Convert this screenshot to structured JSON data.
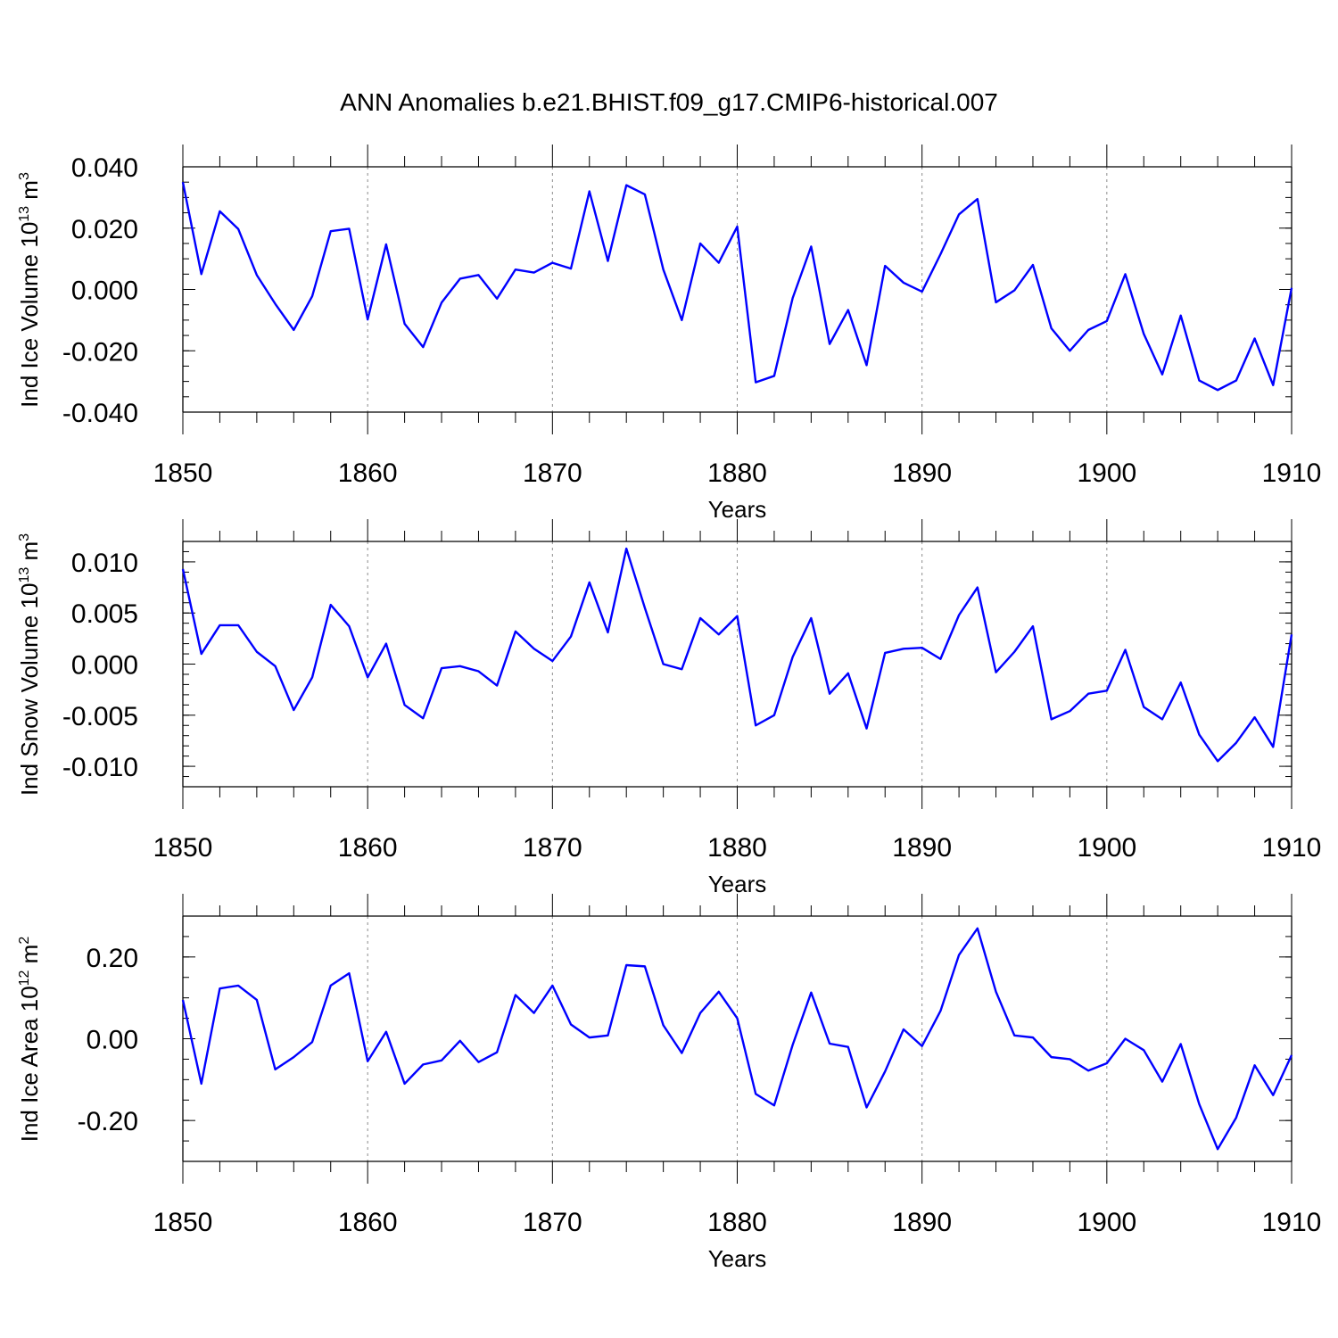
{
  "title": "ANN Anomalies b.e21.BHIST.f09_g17.CMIP6-historical.007",
  "line_color": "#0000ff",
  "chart_data": [
    {
      "type": "line",
      "ylabel": {
        "pre": "Ind Ice Volume 10",
        "exp": "13",
        "unit": " m",
        "unit_exp": "3"
      },
      "xlabel": "Years",
      "xlim": [
        1850,
        1910
      ],
      "ylim": [
        -0.04,
        0.04
      ],
      "x_ticks": [
        1850,
        1860,
        1870,
        1880,
        1890,
        1900,
        1910
      ],
      "x_tick_labels": [
        "1850",
        "1860",
        "1870",
        "1880",
        "1890",
        "1900",
        "1910"
      ],
      "y_ticks": [
        0.04,
        0.02,
        0.0,
        -0.02,
        -0.04
      ],
      "y_tick_labels": [
        "0.040",
        "0.020",
        "0.000",
        "-0.020",
        "-0.040"
      ],
      "y_minor_step": 0.005,
      "grid": "vertical dashed at x-ticks",
      "series": [
        {
          "name": "Ind Ice Volume",
          "x_start": 1850,
          "x_step": 1,
          "values": [
            0.035,
            0.005,
            0.0255,
            0.0197,
            0.0047,
            -0.0047,
            -0.0132,
            -0.0022,
            0.019,
            0.0198,
            -0.0098,
            0.0147,
            -0.0112,
            -0.0188,
            -0.0043,
            0.0035,
            0.0047,
            -0.003,
            0.0065,
            0.0055,
            0.0087,
            0.0068,
            0.032,
            0.0093,
            0.034,
            0.031,
            0.0065,
            -0.01,
            0.015,
            0.0087,
            0.0205,
            -0.0303,
            -0.0282,
            -0.0028,
            0.014,
            -0.0178,
            -0.0067,
            -0.0247,
            0.0077,
            0.0022,
            -0.0007,
            0.0115,
            0.0245,
            0.0295,
            -0.0042,
            -0.0003,
            0.008,
            -0.0127,
            -0.02,
            -0.0132,
            -0.0103,
            0.005,
            -0.0145,
            -0.0277,
            -0.0085,
            -0.0297,
            -0.0328,
            -0.0297,
            -0.016,
            -0.0312,
            0.0005
          ]
        }
      ]
    },
    {
      "type": "line",
      "ylabel": {
        "pre": "Ind Snow Volume 10",
        "exp": "13",
        "unit": " m",
        "unit_exp": "3"
      },
      "xlabel": "Years",
      "xlim": [
        1850,
        1910
      ],
      "ylim": [
        -0.012,
        0.012
      ],
      "x_ticks": [
        1850,
        1860,
        1870,
        1880,
        1890,
        1900,
        1910
      ],
      "x_tick_labels": [
        "1850",
        "1860",
        "1870",
        "1880",
        "1890",
        "1900",
        "1910"
      ],
      "y_ticks": [
        0.01,
        0.005,
        0.0,
        -0.005,
        -0.01
      ],
      "y_tick_labels": [
        "0.010",
        "0.005",
        "0.000",
        "-0.005",
        "-0.010"
      ],
      "y_minor_step": 0.001,
      "grid": "vertical dashed at x-ticks",
      "series": [
        {
          "name": "Ind Snow Volume",
          "x_start": 1850,
          "x_step": 1,
          "values": [
            0.0093,
            0.001,
            0.0038,
            0.0038,
            0.0012,
            -0.0002,
            -0.0045,
            -0.0013,
            0.0058,
            0.0037,
            -0.0013,
            0.002,
            -0.004,
            -0.0053,
            -0.0004,
            -0.0002,
            -0.0007,
            -0.0021,
            0.0032,
            0.0015,
            0.0003,
            0.0027,
            0.008,
            0.0031,
            0.0113,
            0.0055,
            0.0,
            -0.0005,
            0.0045,
            0.0029,
            0.0047,
            -0.006,
            -0.005,
            0.0007,
            0.0045,
            -0.0029,
            -0.0009,
            -0.0063,
            0.0011,
            0.0015,
            0.0016,
            0.0005,
            0.0048,
            0.0075,
            -0.0008,
            0.0012,
            0.0037,
            -0.0054,
            -0.0046,
            -0.0029,
            -0.0026,
            0.0014,
            -0.0042,
            -0.0054,
            -0.0018,
            -0.0069,
            -0.0095,
            -0.0077,
            -0.0052,
            -0.0081,
            0.0029
          ]
        }
      ]
    },
    {
      "type": "line",
      "ylabel": {
        "pre": "Ind Ice Area 10",
        "exp": "12",
        "unit": " m",
        "unit_exp": "2"
      },
      "xlabel": "Years",
      "xlim": [
        1850,
        1910
      ],
      "ylim": [
        -0.3,
        0.3
      ],
      "x_ticks": [
        1850,
        1860,
        1870,
        1880,
        1890,
        1900,
        1910
      ],
      "x_tick_labels": [
        "1850",
        "1860",
        "1870",
        "1880",
        "1890",
        "1900",
        "1910"
      ],
      "y_ticks": [
        0.2,
        0.0,
        -0.2
      ],
      "y_tick_labels": [
        "0.20",
        "0.00",
        "-0.20"
      ],
      "y_minor_step": 0.05,
      "grid": "vertical dashed at x-ticks",
      "series": [
        {
          "name": "Ind Ice Area",
          "x_start": 1850,
          "x_step": 1,
          "values": [
            0.095,
            -0.11,
            0.123,
            0.13,
            0.095,
            -0.075,
            -0.045,
            -0.008,
            0.13,
            0.16,
            -0.055,
            0.017,
            -0.11,
            -0.063,
            -0.053,
            -0.005,
            -0.057,
            -0.033,
            0.107,
            0.063,
            0.13,
            0.035,
            0.003,
            0.008,
            0.18,
            0.177,
            0.033,
            -0.035,
            0.063,
            0.115,
            0.05,
            -0.135,
            -0.163,
            -0.015,
            0.113,
            -0.012,
            -0.02,
            -0.168,
            -0.08,
            0.023,
            -0.018,
            0.068,
            0.205,
            0.27,
            0.115,
            0.008,
            0.003,
            -0.045,
            -0.05,
            -0.078,
            -0.06,
            0.0,
            -0.028,
            -0.105,
            -0.013,
            -0.16,
            -0.27,
            -0.193,
            -0.065,
            -0.138,
            -0.04
          ]
        }
      ]
    }
  ]
}
